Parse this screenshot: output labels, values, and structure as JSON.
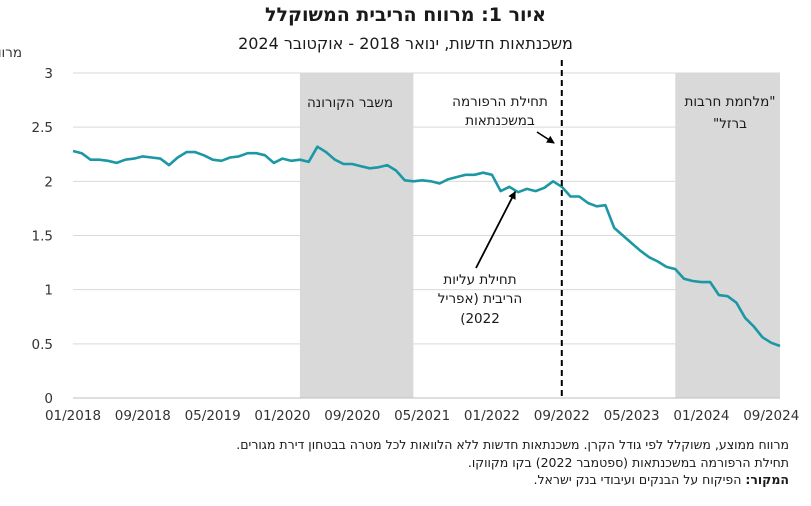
{
  "title": "איור 1: מרווח הריבית המשוקלל",
  "subtitle": "משכנתאות חדשות, ינואר 2018 - אוקטובר 2024",
  "chart_data": {
    "type": "line",
    "ylabel": "מרווח (%)",
    "ylim": [
      0,
      3
    ],
    "yticks": [
      "0",
      "0.5",
      "1",
      "1.5",
      "2",
      "2.5",
      "3"
    ],
    "xticks": [
      "01/2018",
      "09/2018",
      "05/2019",
      "01/2020",
      "09/2020",
      "05/2021",
      "01/2022",
      "09/2022",
      "05/2023",
      "01/2024",
      "09/2024"
    ],
    "x_start": "01/2018",
    "x_end": "10/2024",
    "grid": "horizontal",
    "series_color": "#1c97a5",
    "shade_color": "#d9d9d9",
    "series": [
      {
        "name": "",
        "values": [
          2.28,
          2.26,
          2.2,
          2.2,
          2.19,
          2.17,
          2.2,
          2.21,
          2.23,
          2.22,
          2.21,
          2.15,
          2.22,
          2.27,
          2.27,
          2.24,
          2.2,
          2.19,
          2.22,
          2.23,
          2.26,
          2.26,
          2.24,
          2.17,
          2.21,
          2.19,
          2.2,
          2.18,
          2.32,
          2.27,
          2.2,
          2.16,
          2.16,
          2.14,
          2.12,
          2.13,
          2.15,
          2.1,
          2.01,
          2.0,
          2.01,
          2.0,
          1.98,
          2.02,
          2.04,
          2.06,
          2.06,
          2.08,
          2.06,
          1.91,
          1.95,
          1.9,
          1.93,
          1.91,
          1.94,
          2.0,
          1.95,
          1.86,
          1.86,
          1.8,
          1.77,
          1.78,
          1.57,
          1.5,
          1.43,
          1.36,
          1.3,
          1.26,
          1.21,
          1.19,
          1.1,
          1.08,
          1.07,
          1.07,
          0.95,
          0.94,
          0.88,
          0.74,
          0.66,
          0.56,
          0.51,
          0.48
        ]
      }
    ],
    "shaded_periods": [
      {
        "label": "משבר הקורונה",
        "start": "03/2020",
        "end": "04/2021"
      },
      {
        "label": "\"מלחמת חרבות ברזל\"",
        "start": "10/2023",
        "end": "10/2024"
      }
    ],
    "annotations": {
      "reform_line": "09/2022",
      "reform_label_line1": "תחילת הרפורמה",
      "reform_label_line2": "במשכנתאות",
      "rate_label_line1": "תחילת עליות",
      "rate_label_line2": "הריבית (אפריל",
      "rate_label_line3": "(2022",
      "rate_point": "04/2022",
      "corona_label": "משבר הקורונה",
      "war_label_line1": "\"מלחמת חרבות",
      "war_label_line2": "ברזל\""
    }
  },
  "notes": {
    "line1": "מרווח ממוצע, משוקלל לפי גודל הקרן. משכנתאות חדשות ללא הלוואות לכל מטרה בבטחון דירת מגורים.",
    "line2": "תחילת הרפורמה במשכנתאות (ספטמבר 2022) בקו מקווקו.",
    "source_label": "המקור:",
    "source_text": " הפיקוח על הבנקים ועיבודי בנק ישראל."
  }
}
